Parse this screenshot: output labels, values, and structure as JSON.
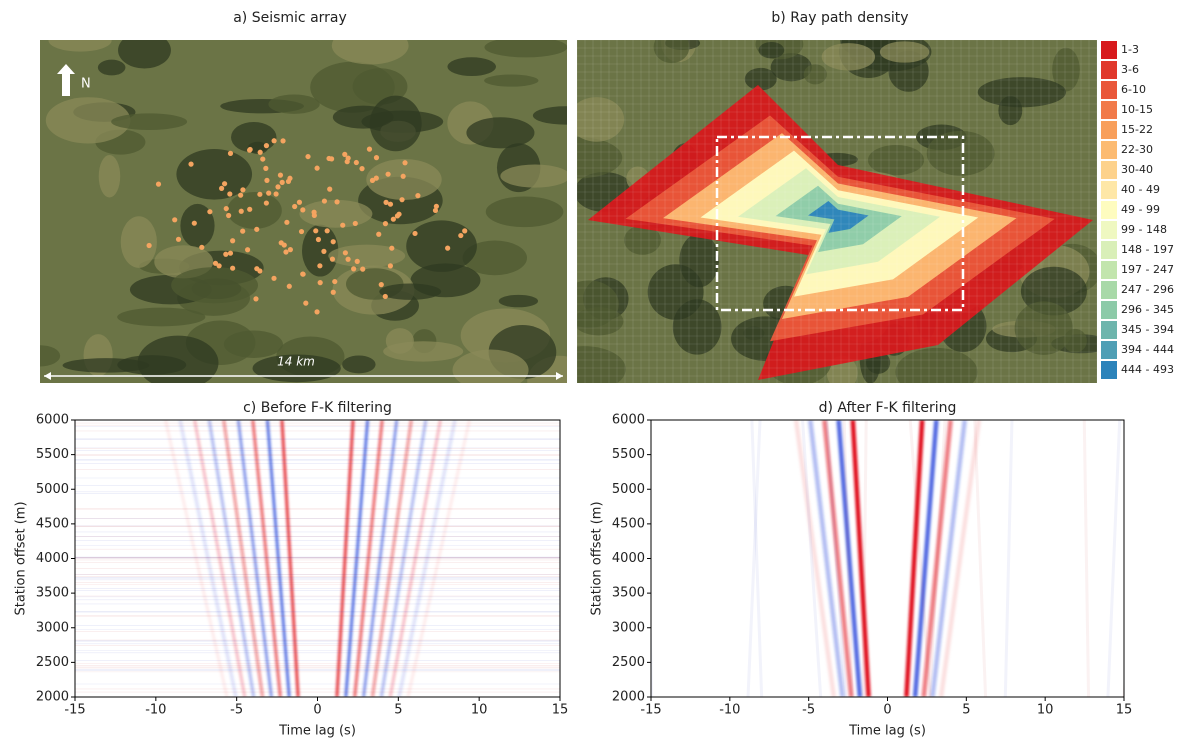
{
  "chart_data": [
    {
      "type": "map",
      "title": "a) Seismic array",
      "north_label": "N",
      "scale_label": "14 km"
    },
    {
      "type": "map",
      "title": "b) Ray path density",
      "legend": [
        {
          "name": "1-3",
          "color": "#d7191c"
        },
        {
          "name": "3-6",
          "color": "#e0382b"
        },
        {
          "name": "6-10",
          "color": "#e9573a"
        },
        {
          "name": "10-15",
          "color": "#f17a4a"
        },
        {
          "name": "15-22",
          "color": "#f89f5b"
        },
        {
          "name": "22-30",
          "color": "#fcbb72"
        },
        {
          "name": "30-40",
          "color": "#fdd28c"
        },
        {
          "name": "40 - 49",
          "color": "#fee7a7"
        },
        {
          "name": "49 - 99",
          "color": "#fefcbf"
        },
        {
          "name": "99 - 148",
          "color": "#eff8c1"
        },
        {
          "name": "148 - 197",
          "color": "#d9efb8"
        },
        {
          "name": "197 - 247",
          "color": "#c2e5ad"
        },
        {
          "name": "247 - 296",
          "color": "#a8d9a8"
        },
        {
          "name": "296 - 345",
          "color": "#8ccaa8"
        },
        {
          "name": "345 - 394",
          "color": "#6db5ac"
        },
        {
          "name": "394 - 444",
          "color": "#4f9fb5"
        },
        {
          "name": "444 - 493",
          "color": "#2b83ba"
        }
      ]
    },
    {
      "type": "wavefield",
      "title": "c) Before F-K filtering",
      "xlabel": "Time lag (s)",
      "ylabel": "Station offset (m)",
      "xlim": [
        -15,
        15
      ],
      "ylim": [
        2000,
        6000
      ],
      "xticks": [
        -15,
        -10,
        -5,
        0,
        5,
        10,
        15
      ],
      "yticks": [
        2000,
        2500,
        3000,
        3500,
        4000,
        4500,
        5000,
        5500,
        6000
      ]
    },
    {
      "type": "wavefield",
      "title": "d) After F-K filtering",
      "xlabel": "Time lag (s)",
      "ylabel": "Station offset (m)",
      "xlim": [
        -15,
        15
      ],
      "ylim": [
        2000,
        6000
      ],
      "xticks": [
        -15,
        -10,
        -5,
        0,
        5,
        10,
        15
      ],
      "yticks": [
        2000,
        2500,
        3000,
        3500,
        4000,
        4500,
        5000,
        5500,
        6000
      ]
    }
  ]
}
